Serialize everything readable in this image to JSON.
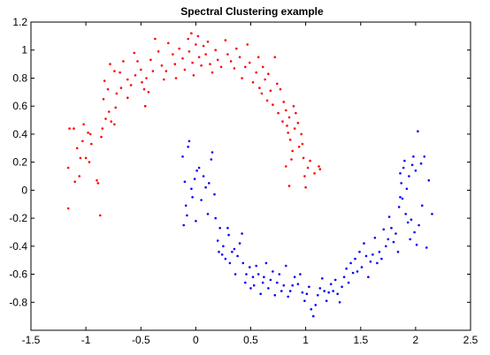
{
  "chart_data": {
    "type": "scatter",
    "title": "Spectral Clustering example",
    "xlabel": "",
    "ylabel": "",
    "xlim": [
      -1.5,
      2.5
    ],
    "ylim": [
      -1.0,
      1.2
    ],
    "xticks": [
      -1.5,
      -1,
      -0.5,
      0,
      0.5,
      1,
      1.5,
      2,
      2.5
    ],
    "yticks": [
      -0.8,
      -0.6,
      -0.4,
      -0.2,
      0,
      0.2,
      0.4,
      0.6,
      0.8,
      1,
      1.2
    ],
    "xtick_labels": [
      "-1.5",
      "-1",
      "-0.5",
      "0",
      "0.5",
      "1",
      "1.5",
      "2",
      "2.5"
    ],
    "ytick_labels": [
      "-0.8",
      "-0.6",
      "-0.4",
      "-0.2",
      "0",
      "0.2",
      "0.4",
      "0.6",
      "0.8",
      "1",
      "1.2"
    ],
    "grid": false,
    "legend": "none",
    "series": [
      {
        "color": "#ff0000",
        "points": [
          [
            -1.16,
            -0.13
          ],
          [
            -1.16,
            0.16
          ],
          [
            -1.15,
            0.44
          ],
          [
            -1.11,
            0.44
          ],
          [
            -1.1,
            0.06
          ],
          [
            -1.08,
            0.3
          ],
          [
            -1.06,
            0.1
          ],
          [
            -1.05,
            0.23
          ],
          [
            -1.03,
            0.35
          ],
          [
            -1.02,
            0.47
          ],
          [
            -1.0,
            0.23
          ],
          [
            -0.98,
            0.41
          ],
          [
            -0.97,
            0.2
          ],
          [
            -0.96,
            0.4
          ],
          [
            -0.95,
            0.33
          ],
          [
            -0.9,
            0.07
          ],
          [
            -0.89,
            0.05
          ],
          [
            -0.87,
            -0.18
          ],
          [
            -0.86,
            0.38
          ],
          [
            -0.85,
            0.44
          ],
          [
            -0.82,
            0.51
          ],
          [
            -0.79,
            0.56
          ],
          [
            -0.77,
            0.49
          ],
          [
            -0.84,
            0.65
          ],
          [
            -0.83,
            0.78
          ],
          [
            -0.8,
            0.72
          ],
          [
            -0.74,
            0.47
          ],
          [
            -0.73,
            0.59
          ],
          [
            -0.72,
            0.69
          ],
          [
            -0.69,
            0.84
          ],
          [
            -0.66,
            0.92
          ],
          [
            -0.62,
            0.79
          ],
          [
            -0.78,
            0.9
          ],
          [
            -0.74,
            0.85
          ],
          [
            -0.68,
            0.73
          ],
          [
            -0.62,
            0.66
          ],
          [
            -0.59,
            0.75
          ],
          [
            -0.55,
            0.82
          ],
          [
            -0.56,
            0.98
          ],
          [
            -0.53,
            0.92
          ],
          [
            -0.5,
            0.86
          ],
          [
            -0.49,
            0.77
          ],
          [
            -0.47,
            0.72
          ],
          [
            -0.45,
            0.8
          ],
          [
            -0.43,
            0.7
          ],
          [
            -0.46,
            0.6
          ],
          [
            -0.41,
            0.93
          ],
          [
            -0.39,
            0.85
          ],
          [
            -0.37,
            1.08
          ],
          [
            -0.34,
            0.99
          ],
          [
            -0.31,
            0.89
          ],
          [
            -0.29,
            0.79
          ],
          [
            -0.27,
            0.85
          ],
          [
            -0.25,
            1.05
          ],
          [
            -0.21,
            0.97
          ],
          [
            -0.19,
            0.9
          ],
          [
            -0.18,
            0.8
          ],
          [
            -0.15,
            1.01
          ],
          [
            -0.12,
            0.94
          ],
          [
            -0.1,
            0.86
          ],
          [
            -0.07,
            1.08
          ],
          [
            -0.06,
            0.99
          ],
          [
            -0.04,
            1.12
          ],
          [
            -0.03,
            0.91
          ],
          [
            -0.02,
            0.82
          ],
          [
            0.0,
            1.04
          ],
          [
            0.02,
            1.1
          ],
          [
            0.03,
            0.95
          ],
          [
            0.05,
            0.89
          ],
          [
            0.07,
            1.03
          ],
          [
            0.09,
            0.97
          ],
          [
            0.11,
            1.06
          ],
          [
            0.13,
            0.9
          ],
          [
            0.15,
            0.84
          ],
          [
            0.18,
            1.0
          ],
          [
            0.2,
            0.93
          ],
          [
            0.23,
            0.88
          ],
          [
            0.27,
            1.07
          ],
          [
            0.29,
            0.97
          ],
          [
            0.32,
            0.92
          ],
          [
            0.35,
            0.87
          ],
          [
            0.37,
            1.01
          ],
          [
            0.4,
            0.95
          ],
          [
            0.42,
            0.8
          ],
          [
            0.45,
            0.88
          ],
          [
            0.47,
            1.04
          ],
          [
            0.49,
            0.91
          ],
          [
            0.52,
            0.77
          ],
          [
            0.55,
            0.84
          ],
          [
            0.57,
            0.95
          ],
          [
            0.58,
            0.73
          ],
          [
            0.6,
            0.69
          ],
          [
            0.61,
            0.88
          ],
          [
            0.63,
            0.79
          ],
          [
            0.65,
            0.64
          ],
          [
            0.66,
            0.83
          ],
          [
            0.68,
            0.71
          ],
          [
            0.7,
            0.61
          ],
          [
            0.72,
            0.95
          ],
          [
            0.74,
            0.76
          ],
          [
            0.75,
            0.55
          ],
          [
            0.77,
            0.72
          ],
          [
            0.79,
            0.49
          ],
          [
            0.8,
            0.63
          ],
          [
            0.82,
            0.57
          ],
          [
            0.83,
            0.46
          ],
          [
            0.84,
            0.41
          ],
          [
            0.85,
            0.52
          ],
          [
            0.86,
            0.36
          ],
          [
            0.87,
            0.22
          ],
          [
            0.88,
            0.28
          ],
          [
            0.89,
            0.6
          ],
          [
            0.9,
            0.44
          ],
          [
            0.91,
            0.55
          ],
          [
            0.93,
            0.48
          ],
          [
            0.94,
            0.31
          ],
          [
            0.96,
            0.4
          ],
          [
            0.97,
            0.33
          ],
          [
            0.98,
            0.23
          ],
          [
            0.99,
            0.1
          ],
          [
            1.0,
            0.02
          ],
          [
            1.02,
            0.16
          ],
          [
            1.04,
            0.21
          ],
          [
            1.08,
            0.12
          ],
          [
            1.12,
            0.17
          ],
          [
            1.13,
            0.15
          ],
          [
            0.82,
            0.17
          ],
          [
            0.85,
            0.03
          ]
        ]
      },
      {
        "color": "#0000ff",
        "points": [
          [
            -0.12,
            0.24
          ],
          [
            -0.11,
            -0.25
          ],
          [
            -0.1,
            0.06
          ],
          [
            -0.09,
            -0.11
          ],
          [
            -0.08,
            -0.18
          ],
          [
            -0.07,
            0.31
          ],
          [
            -0.06,
            0.35
          ],
          [
            -0.04,
            0.01
          ],
          [
            -0.03,
            -0.05
          ],
          [
            -0.01,
            0.08
          ],
          [
            0.0,
            -0.22
          ],
          [
            0.01,
            0.14
          ],
          [
            0.03,
            0.16
          ],
          [
            0.05,
            -0.07
          ],
          [
            0.07,
            0.1
          ],
          [
            0.09,
            0.02
          ],
          [
            0.11,
            -0.17
          ],
          [
            0.12,
            0.05
          ],
          [
            0.14,
            0.22
          ],
          [
            0.15,
            0.27
          ],
          [
            0.17,
            -0.03
          ],
          [
            0.18,
            -0.2
          ],
          [
            0.2,
            -0.36
          ],
          [
            0.21,
            -0.44
          ],
          [
            0.22,
            -0.27
          ],
          [
            0.24,
            -0.46
          ],
          [
            0.25,
            -0.4
          ],
          [
            0.27,
            -0.49
          ],
          [
            0.29,
            -0.27
          ],
          [
            0.3,
            -0.32
          ],
          [
            0.31,
            -0.52
          ],
          [
            0.33,
            -0.44
          ],
          [
            0.35,
            -0.42
          ],
          [
            0.36,
            -0.6
          ],
          [
            0.38,
            -0.47
          ],
          [
            0.4,
            -0.38
          ],
          [
            0.42,
            -0.31
          ],
          [
            0.43,
            -0.52
          ],
          [
            0.45,
            -0.66
          ],
          [
            0.46,
            -0.6
          ],
          [
            0.49,
            -0.55
          ],
          [
            0.5,
            -0.7
          ],
          [
            0.52,
            -0.62
          ],
          [
            0.53,
            -0.68
          ],
          [
            0.55,
            -0.54
          ],
          [
            0.57,
            -0.6
          ],
          [
            0.59,
            -0.74
          ],
          [
            0.61,
            -0.66
          ],
          [
            0.62,
            -0.62
          ],
          [
            0.64,
            -0.52
          ],
          [
            0.66,
            -0.7
          ],
          [
            0.68,
            -0.64
          ],
          [
            0.7,
            -0.58
          ],
          [
            0.72,
            -0.75
          ],
          [
            0.74,
            -0.66
          ],
          [
            0.76,
            -0.6
          ],
          [
            0.78,
            -0.72
          ],
          [
            0.8,
            -0.68
          ],
          [
            0.82,
            -0.54
          ],
          [
            0.84,
            -0.76
          ],
          [
            0.86,
            -0.72
          ],
          [
            0.88,
            -0.68
          ],
          [
            0.9,
            -0.62
          ],
          [
            0.93,
            -0.67
          ],
          [
            0.95,
            -0.6
          ],
          [
            0.97,
            -0.73
          ],
          [
            0.99,
            -0.79
          ],
          [
            1.01,
            -0.74
          ],
          [
            1.03,
            -0.69
          ],
          [
            1.05,
            -0.85
          ],
          [
            1.07,
            -0.9
          ],
          [
            1.09,
            -0.82
          ],
          [
            1.11,
            -0.75
          ],
          [
            1.13,
            -0.7
          ],
          [
            1.15,
            -0.63
          ],
          [
            1.17,
            -0.72
          ],
          [
            1.19,
            -0.79
          ],
          [
            1.21,
            -0.73
          ],
          [
            1.23,
            -0.67
          ],
          [
            1.25,
            -0.72
          ],
          [
            1.27,
            -0.64
          ],
          [
            1.29,
            -0.74
          ],
          [
            1.31,
            -0.8
          ],
          [
            1.33,
            -0.69
          ],
          [
            1.35,
            -0.62
          ],
          [
            1.37,
            -0.56
          ],
          [
            1.39,
            -0.66
          ],
          [
            1.41,
            -0.52
          ],
          [
            1.43,
            -0.59
          ],
          [
            1.45,
            -0.49
          ],
          [
            1.47,
            -0.58
          ],
          [
            1.49,
            -0.44
          ],
          [
            1.51,
            -0.55
          ],
          [
            1.53,
            -0.38
          ],
          [
            1.55,
            -0.47
          ],
          [
            1.57,
            -0.62
          ],
          [
            1.59,
            -0.51
          ],
          [
            1.61,
            -0.46
          ],
          [
            1.63,
            -0.34
          ],
          [
            1.65,
            -0.52
          ],
          [
            1.67,
            -0.44
          ],
          [
            1.69,
            -0.49
          ],
          [
            1.71,
            -0.28
          ],
          [
            1.73,
            -0.4
          ],
          [
            1.75,
            -0.35
          ],
          [
            1.76,
            -0.19
          ],
          [
            1.78,
            -0.27
          ],
          [
            1.8,
            -0.37
          ],
          [
            1.82,
            -0.31
          ],
          [
            1.84,
            -0.44
          ],
          [
            1.85,
            -0.12
          ],
          [
            1.86,
            0.12
          ],
          [
            1.87,
            0.05
          ],
          [
            1.88,
            -0.06
          ],
          [
            1.89,
            0.16
          ],
          [
            1.9,
            0.21
          ],
          [
            1.91,
            -0.17
          ],
          [
            1.92,
            0.01
          ],
          [
            1.93,
            -0.23
          ],
          [
            1.94,
            0.1
          ],
          [
            1.95,
            -0.35
          ],
          [
            1.96,
            -0.21
          ],
          [
            1.97,
            0.18
          ],
          [
            1.98,
            0.24
          ],
          [
            1.99,
            -0.3
          ],
          [
            2.0,
            0.14
          ],
          [
            2.01,
            -0.39
          ],
          [
            2.02,
            0.42
          ],
          [
            2.03,
            -0.25
          ],
          [
            2.05,
            0.19
          ],
          [
            2.06,
            -0.11
          ],
          [
            2.08,
            0.24
          ],
          [
            2.1,
            -0.41
          ],
          [
            2.12,
            0.07
          ],
          [
            2.15,
            -0.17
          ],
          [
            1.86,
            -0.05
          ]
        ]
      }
    ]
  }
}
